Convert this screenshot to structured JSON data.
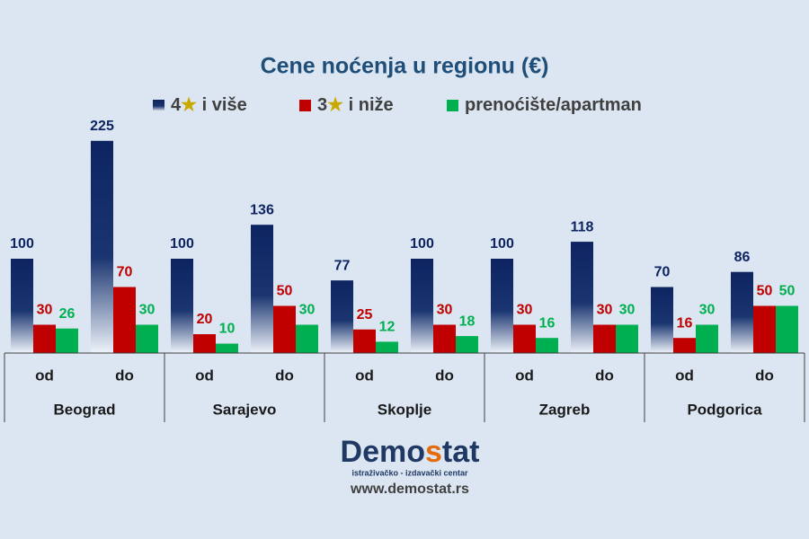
{
  "chart_data": {
    "type": "bar",
    "title": "Cene noćenja u regionu (€)",
    "categories": [
      "od",
      "do",
      "od",
      "do",
      "od",
      "do",
      "od",
      "do",
      "od",
      "do"
    ],
    "groups": [
      "Beograd",
      "Sarajevo",
      "Skoplje",
      "Zagreb",
      "Podgorica"
    ],
    "series": [
      {
        "name": "4★ i više",
        "color": "#0d2461",
        "values": [
          100,
          225,
          100,
          136,
          77,
          100,
          100,
          118,
          70,
          86
        ]
      },
      {
        "name": "3★ i niže",
        "color": "#c00000",
        "values": [
          30,
          70,
          20,
          50,
          25,
          30,
          30,
          30,
          16,
          50
        ]
      },
      {
        "name": "prenoćište/apartman",
        "color": "#00b050",
        "values": [
          26,
          30,
          10,
          30,
          12,
          18,
          16,
          30,
          30,
          50
        ]
      }
    ],
    "ylim": [
      0,
      240
    ]
  },
  "brand": {
    "name": "Demostat",
    "tagline": "istraživačko - izdavački centar",
    "url": "www.demostat.rs"
  }
}
